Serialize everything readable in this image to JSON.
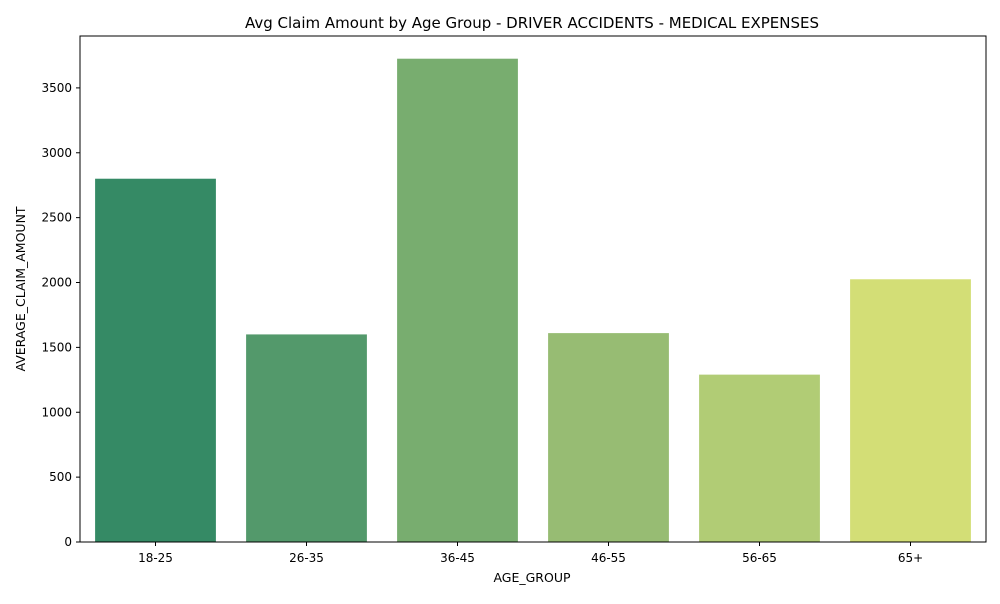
{
  "chart_data": {
    "type": "bar",
    "title": "Avg Claim Amount by Age Group - DRIVER ACCIDENTS - MEDICAL EXPENSES",
    "xlabel": "AGE_GROUP",
    "ylabel": "AVERAGE_CLAIM_AMOUNT",
    "categories": [
      "18-25",
      "26-35",
      "36-45",
      "46-55",
      "56-65",
      "65+"
    ],
    "values": [
      2800,
      1600,
      3725,
      1610,
      1290,
      2025
    ],
    "colors": [
      "#358a65",
      "#53996b",
      "#78ad6f",
      "#97bc73",
      "#b1cc75",
      "#d3de76"
    ],
    "ylim": [
      0,
      3900
    ],
    "yticks": [
      0,
      500,
      1000,
      1500,
      2000,
      2500,
      3000,
      3500
    ],
    "grid": false,
    "legend": "none"
  }
}
